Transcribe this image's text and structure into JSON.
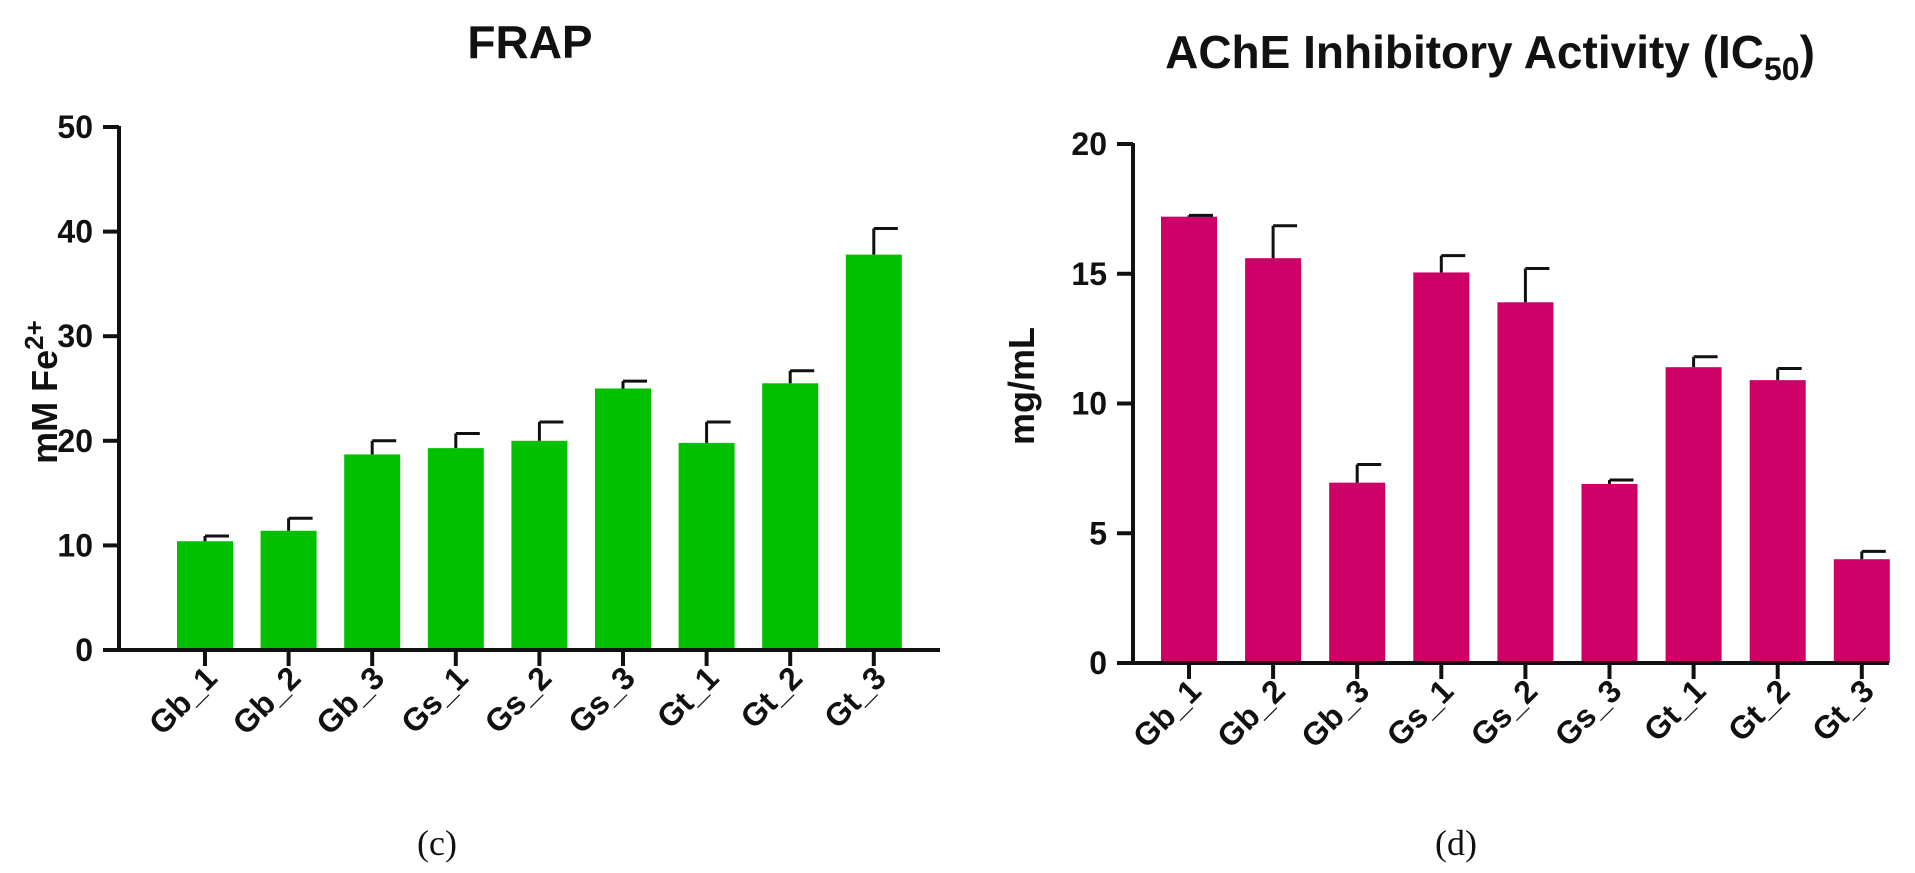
{
  "chart_data": [
    {
      "type": "bar",
      "title": "FRAP",
      "xlabel": "",
      "ylabel": {
        "base": "mM Fe",
        "sup": "2+"
      },
      "ylim": [
        0,
        50
      ],
      "yticks": [
        0,
        10,
        20,
        30,
        40,
        50
      ],
      "categories": [
        "Gb_1",
        "Gb_2",
        "Gb_3",
        "Gs_1",
        "Gs_2",
        "Gs_3",
        "Gt_1",
        "Gt_2",
        "Gt_3"
      ],
      "values": [
        10.4,
        11.4,
        18.7,
        19.3,
        20.0,
        25.0,
        19.8,
        25.5,
        37.8
      ],
      "errors": [
        0.5,
        1.2,
        1.3,
        1.4,
        1.8,
        0.7,
        2.0,
        1.2,
        2.5
      ],
      "color": "#00c000",
      "panel_label": "(c)"
    },
    {
      "type": "bar",
      "title": {
        "base": "AChE Inhibitory Activity (IC",
        "sub": "50",
        "tail": ")"
      },
      "xlabel": "",
      "ylabel": "mg/mL",
      "ylim": [
        0,
        20
      ],
      "yticks": [
        0,
        5,
        10,
        15,
        20
      ],
      "categories": [
        "Gb_1",
        "Gb_2",
        "Gb_3",
        "Gs_1",
        "Gs_2",
        "Gs_3",
        "Gt_1",
        "Gt_2",
        "Gt_3"
      ],
      "values": [
        17.2,
        15.6,
        6.95,
        15.05,
        13.9,
        6.9,
        11.4,
        10.9,
        4.0
      ],
      "errors": [
        0.05,
        1.25,
        0.7,
        0.65,
        1.3,
        0.15,
        0.4,
        0.45,
        0.3
      ],
      "color": "#cc0066",
      "panel_label": "(d)"
    }
  ]
}
